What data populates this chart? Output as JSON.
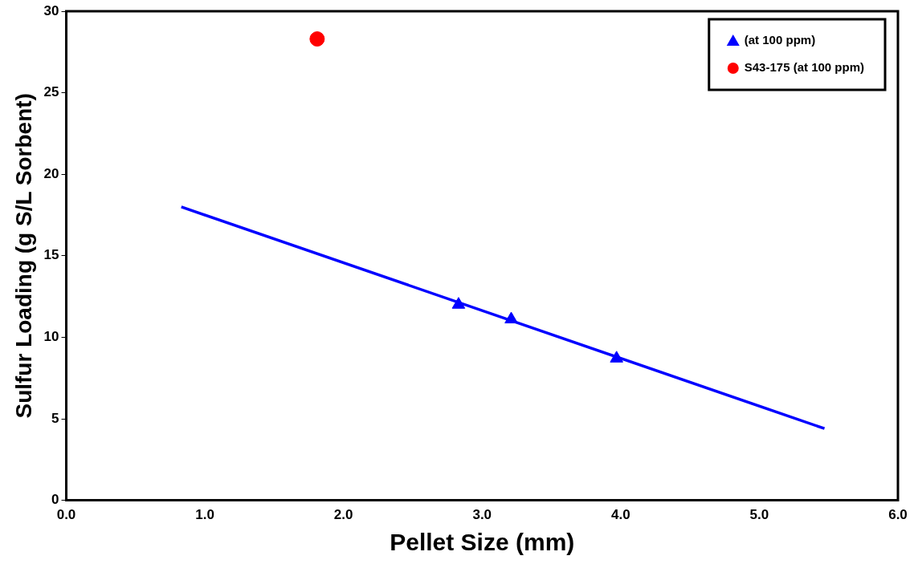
{
  "chart_data": {
    "type": "scatter",
    "xlabel": "Pellet Size (mm)",
    "ylabel": "Sulfur Loading (g S/L Sorbent)",
    "xlim": [
      0,
      6
    ],
    "ylim": [
      0,
      30
    ],
    "xticks": [
      {
        "value": 0,
        "label": "0.0"
      },
      {
        "value": 1,
        "label": "1.0"
      },
      {
        "value": 2,
        "label": "2.0"
      },
      {
        "value": 3,
        "label": "3.0"
      },
      {
        "value": 4,
        "label": "4.0"
      },
      {
        "value": 5,
        "label": "5.0"
      },
      {
        "value": 6,
        "label": "6.0"
      }
    ],
    "yticks": [
      0,
      5,
      10,
      15,
      20,
      25,
      30
    ],
    "grid": false,
    "legend": "top right",
    "series": [
      {
        "name": "(at 100 ppm)",
        "color": "#0000ff",
        "marker": "triangle",
        "x": [
          2.83,
          3.21,
          3.97
        ],
        "values": [
          12.0,
          11.1,
          8.7
        ]
      },
      {
        "name": "S43-175 (at 100 ppm)",
        "color": "#ff0000",
        "marker": "circle",
        "x": [
          1.81
        ],
        "values": [
          28.3
        ]
      },
      {
        "type": "line",
        "color": "#0000ff",
        "marker": "none",
        "x": [
          0.83,
          5.47
        ],
        "values": [
          18.0,
          4.4
        ]
      }
    ]
  }
}
